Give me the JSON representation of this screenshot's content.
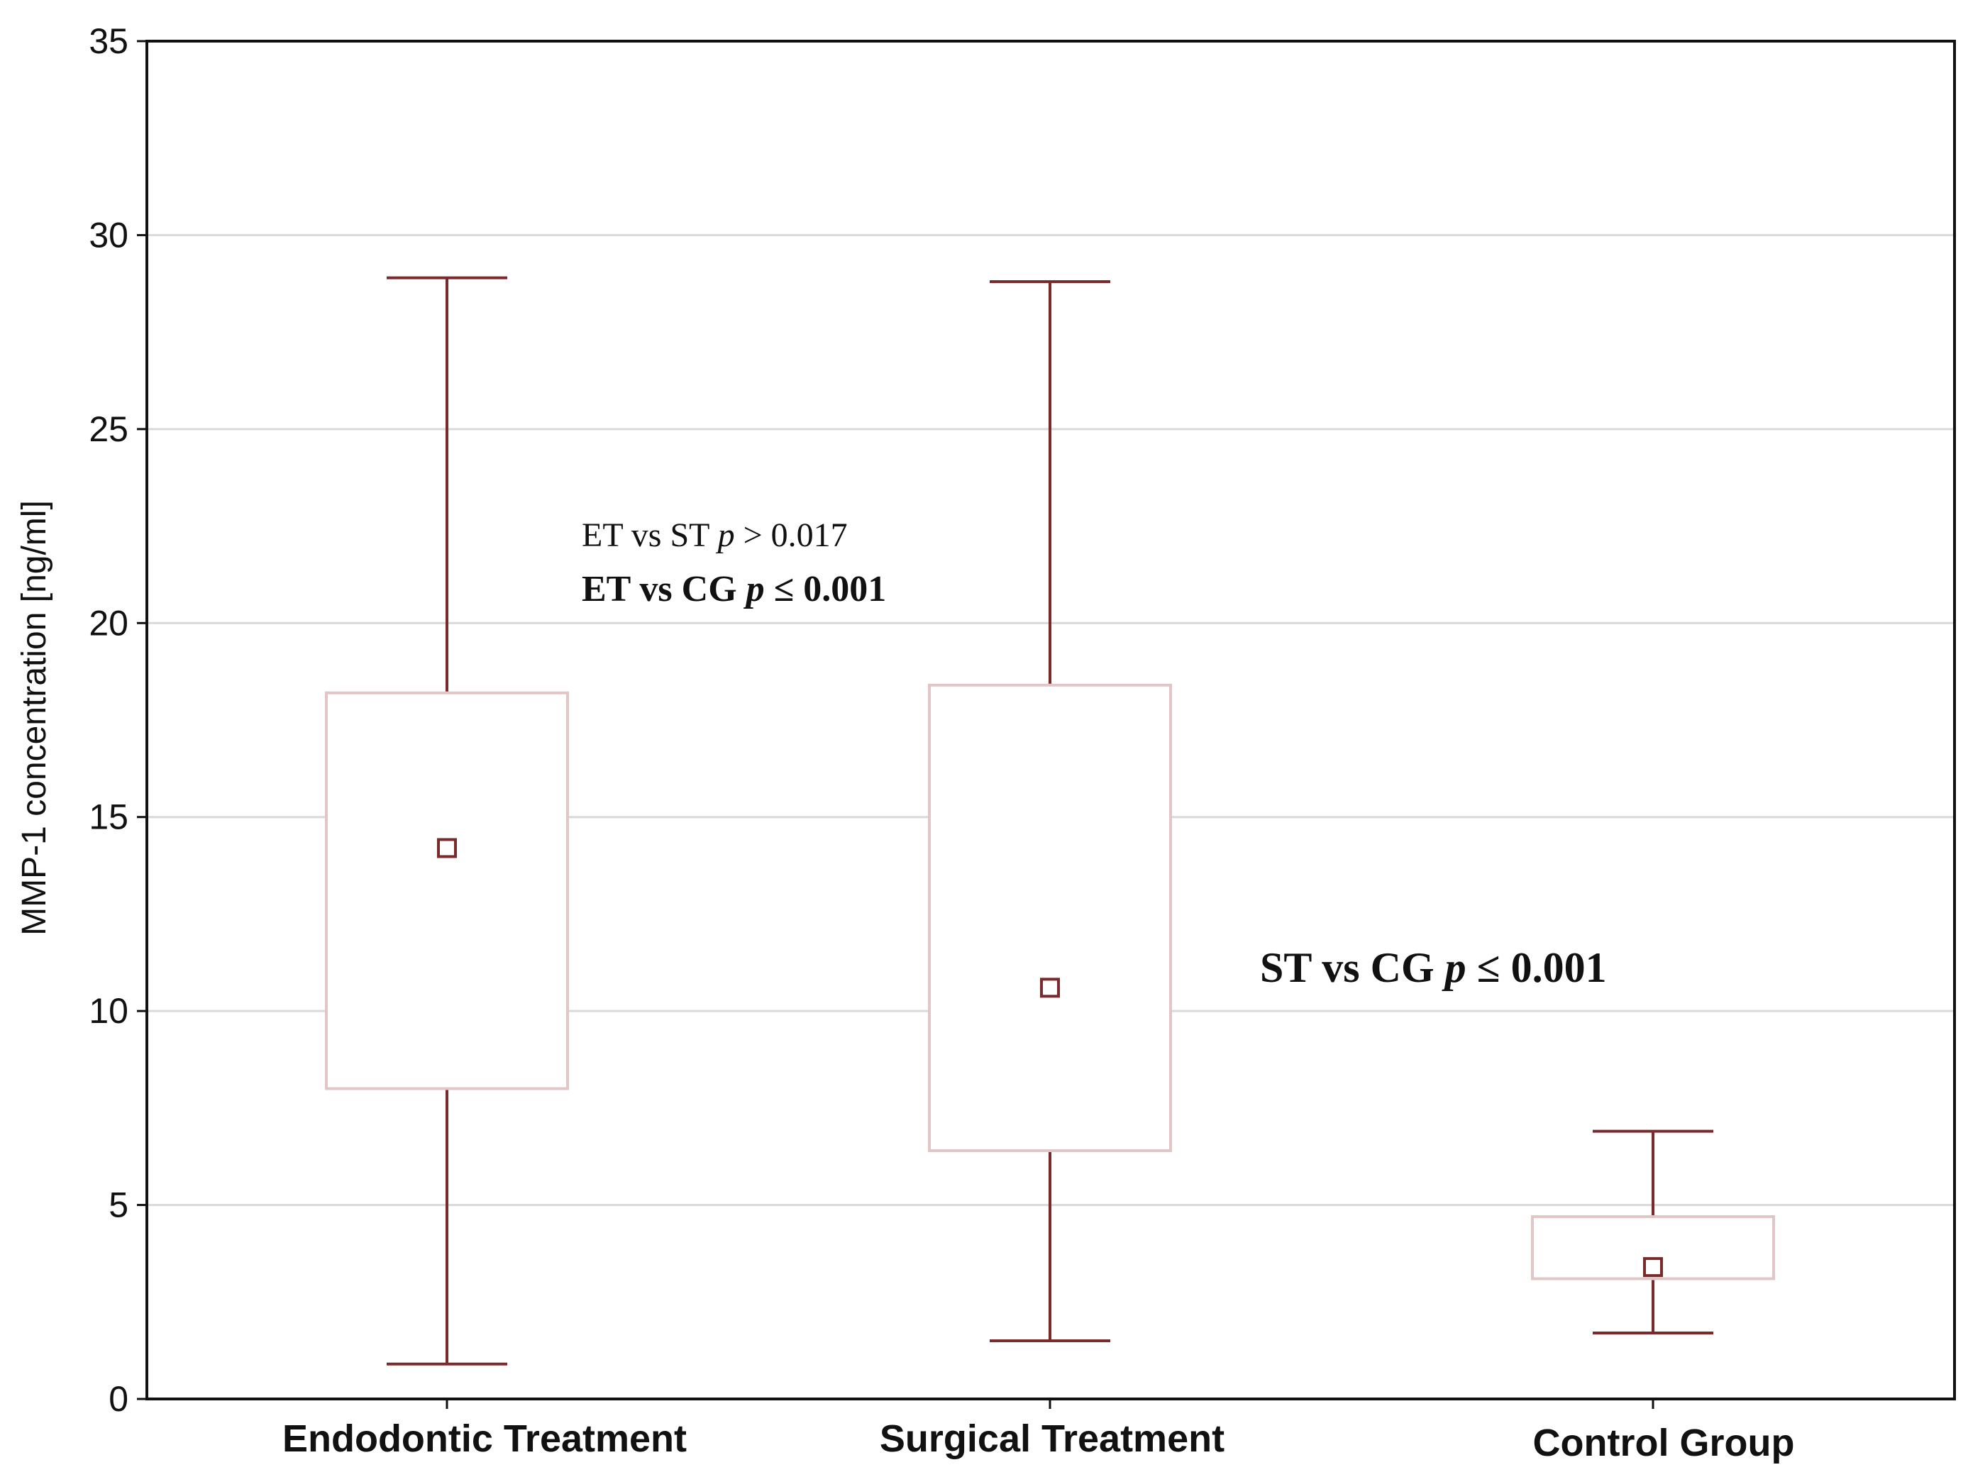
{
  "chart_data": {
    "type": "box",
    "categories": [
      "Endodontic Treatment",
      "Surgical Treatment",
      "Control Group"
    ],
    "ylabel": "MMP-1 concentration [ng/ml]",
    "ylim": [
      0,
      35
    ],
    "yticks": [
      0,
      5,
      10,
      15,
      20,
      25,
      30,
      35
    ],
    "grid": "horizontal",
    "boxes": [
      {
        "min": 0.9,
        "q1": 8.0,
        "median": 14.2,
        "q3": 18.2,
        "max": 28.9
      },
      {
        "min": 1.5,
        "q1": 6.4,
        "median": 10.6,
        "q3": 18.4,
        "max": 28.8
      },
      {
        "min": 1.7,
        "q1": 3.1,
        "median": 3.4,
        "q3": 4.7,
        "max": 6.9
      }
    ],
    "colors": {
      "whisker": "#7a2a2a",
      "box_edge": "#e2c6c6",
      "median_marker": "#7a2a2a",
      "grid": "#d9d9d9",
      "frame": "#111111"
    },
    "annotations": [
      {
        "id": "et-st",
        "parts": [
          {
            "text": "ET vs ST ",
            "style": "normal"
          },
          {
            "text": "p",
            "style": "italic"
          },
          {
            "text": " > 0.017",
            "style": "normal"
          }
        ],
        "weight": "normal"
      },
      {
        "id": "et-cg",
        "parts": [
          {
            "text": "ET vs CG ",
            "style": "normal"
          },
          {
            "text": "p",
            "style": "italic"
          },
          {
            "text": " ≤ 0.001",
            "style": "normal"
          }
        ],
        "weight": "bold"
      },
      {
        "id": "st-cg",
        "parts": [
          {
            "text": "ST vs CG ",
            "style": "normal"
          },
          {
            "text": "p",
            "style": "italic"
          },
          {
            "text": " ≤ 0.001",
            "style": "normal"
          }
        ],
        "weight": "bold"
      }
    ]
  }
}
